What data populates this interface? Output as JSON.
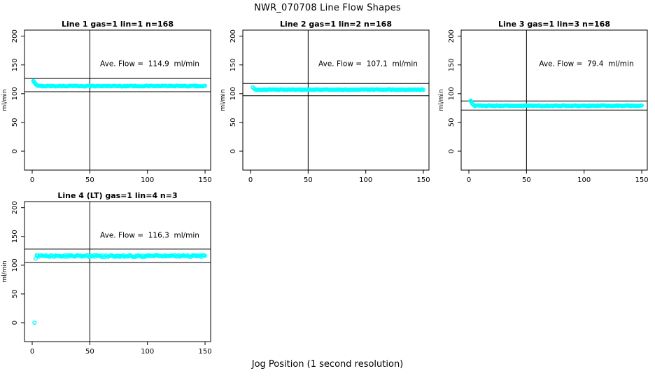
{
  "title": "NWR_070708  Line Flow Shapes",
  "xlabel": "Jog Position (1 second resolution)",
  "ylabel": "ml/min",
  "colors": {
    "points": "#00FFFF",
    "axis": "#000000",
    "reference_lines": "#000000",
    "background": "#FFFFFF"
  },
  "axes": {
    "x_ticks": [
      0,
      50,
      100,
      150
    ],
    "y_ticks": [
      0,
      50,
      100,
      150,
      200
    ],
    "xlim": [
      0,
      150
    ],
    "ylim": [
      0,
      200
    ],
    "grid": false
  },
  "chart_data": [
    {
      "type": "scatter",
      "title": "Line 1 gas=1 lin=1 n=168",
      "annotation": "Ave. Flow =  114.9  ml/min",
      "ave_flow": 114.9,
      "n": 168,
      "vline_x": 50,
      "hlines": [
        126.4,
        103.4
      ],
      "transient_points": [
        [
          1,
          122
        ],
        [
          1.5,
          121
        ],
        [
          2,
          119.5
        ],
        [
          2.5,
          118
        ],
        [
          3,
          116.5
        ],
        [
          4,
          114.8
        ]
      ],
      "steady": {
        "x_from": 5,
        "x_to": 150,
        "x_step": 1,
        "y": 113.3,
        "jitter": 0.7
      },
      "outliers": []
    },
    {
      "type": "scatter",
      "title": "Line 2 gas=1 lin=2 n=168",
      "annotation": "Ave. Flow =  107.1  ml/min",
      "ave_flow": 107.1,
      "n": 168,
      "vline_x": 50,
      "hlines": [
        117.8,
        96.4
      ],
      "transient_points": [
        [
          2,
          111
        ],
        [
          3,
          108.8
        ]
      ],
      "steady": {
        "x_from": 4,
        "x_to": 150,
        "x_step": 1,
        "y": 107.0,
        "jitter": 0.6
      },
      "outliers": []
    },
    {
      "type": "scatter",
      "title": "Line 3 gas=1 lin=3 n=168",
      "annotation": "Ave. Flow =  79.4  ml/min",
      "ave_flow": 79.4,
      "n": 168,
      "vline_x": 50,
      "hlines": [
        87.3,
        71.5
      ],
      "transient_points": [
        [
          1.5,
          88
        ],
        [
          2,
          86.5
        ],
        [
          2.5,
          84.5
        ],
        [
          3,
          82.5
        ],
        [
          4,
          80.5
        ]
      ],
      "steady": {
        "x_from": 5,
        "x_to": 150,
        "x_step": 1,
        "y": 79.0,
        "jitter": 0.8
      },
      "outliers": []
    },
    {
      "type": "scatter",
      "title": "Line 4 (LT) gas=1 lin=4 n=3",
      "annotation": "Ave. Flow =  116.3  ml/min",
      "ave_flow": 116.3,
      "n": 3,
      "vline_x": 50,
      "hlines": [
        127.9,
        104.7
      ],
      "transient_points": [
        [
          3,
          111.5
        ]
      ],
      "steady": {
        "x_from": 4,
        "x_to": 150,
        "x_step": 1,
        "y": 115.8,
        "jitter": 1.6
      },
      "outliers": [
        [
          2,
          0
        ]
      ]
    }
  ]
}
